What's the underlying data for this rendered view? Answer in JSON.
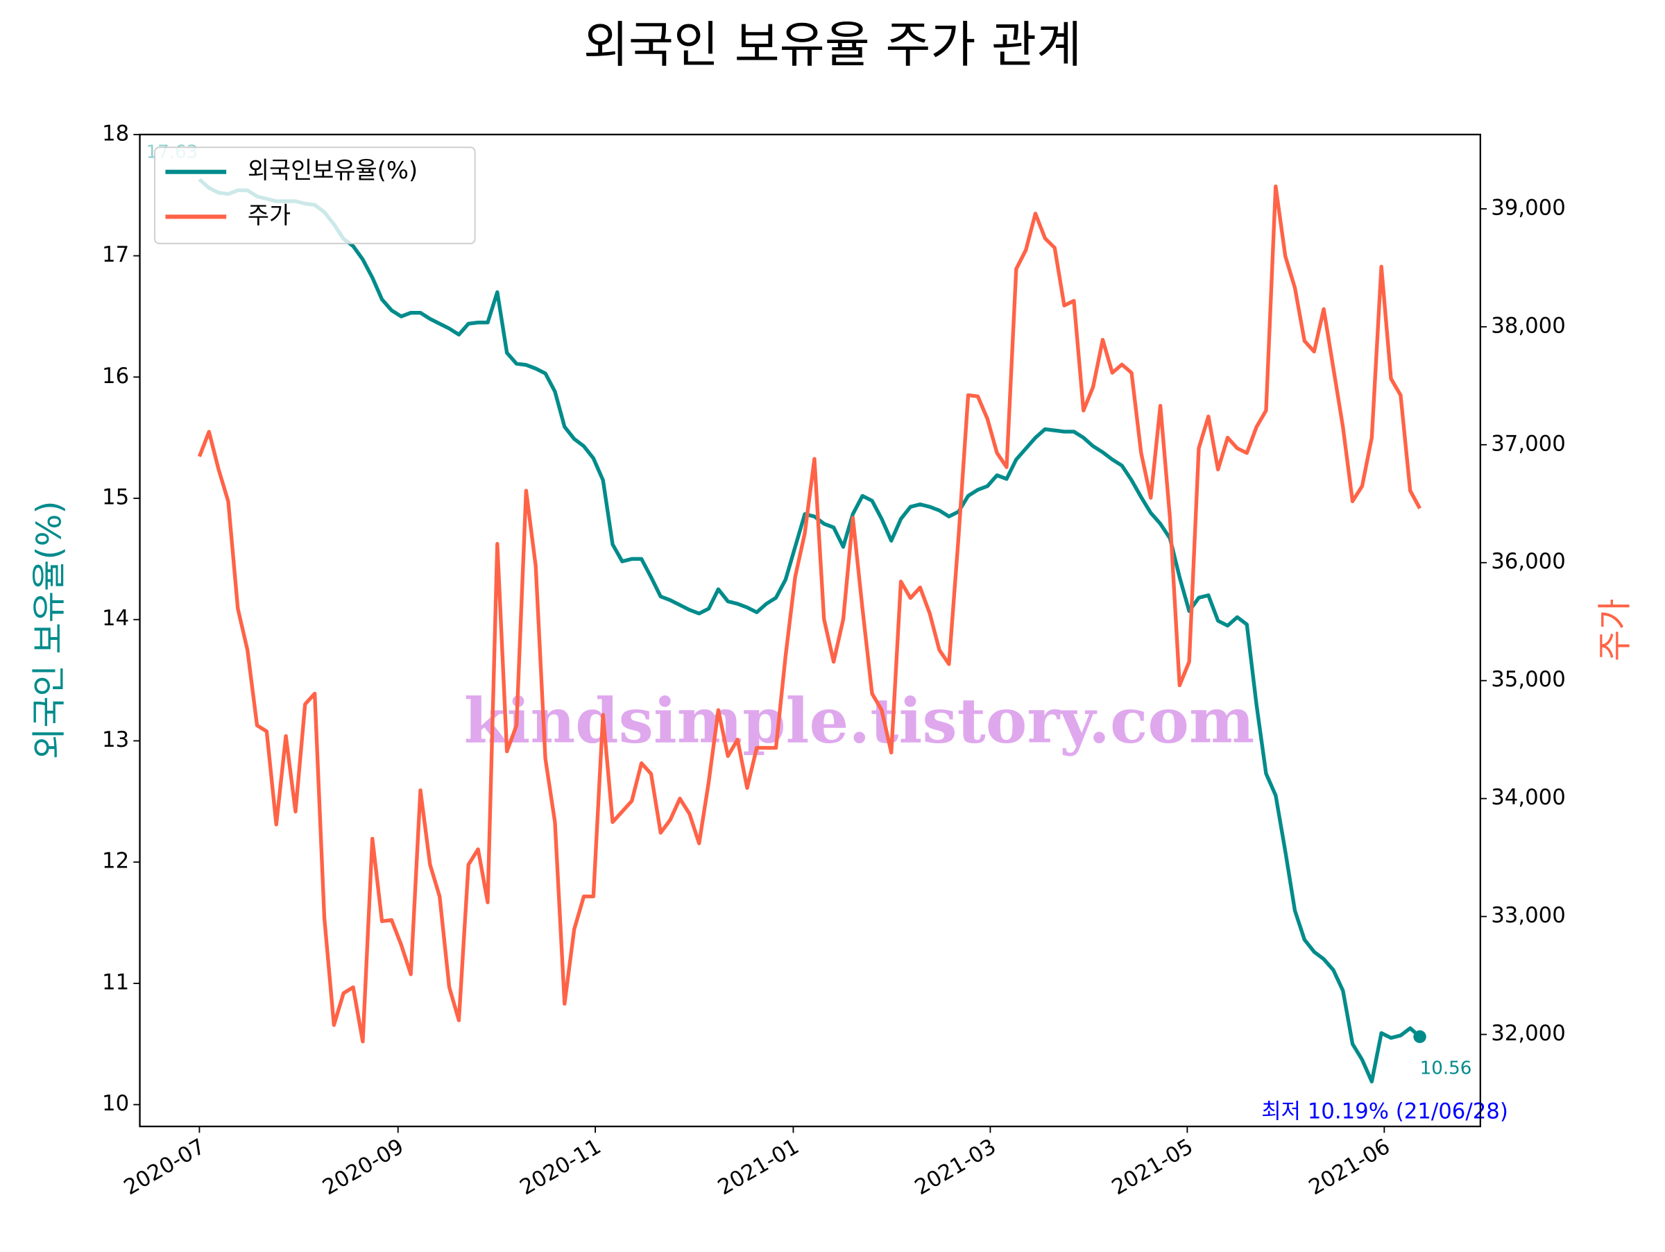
{
  "chart_data": {
    "type": "line",
    "title": "외국인 보유율 주가 관계",
    "ylabel": "외국인 보유율(%)",
    "y2label": "주가",
    "legend": "upper left",
    "grid": false,
    "xlim": [
      -6.2,
      133.3
    ],
    "xticks": [
      {
        "value": 0,
        "label": "2020-07"
      },
      {
        "value": 20.67,
        "label": "2020-09"
      },
      {
        "value": 41.2,
        "label": "2020-11"
      },
      {
        "value": 61.8,
        "label": "2021-01"
      },
      {
        "value": 82.3,
        "label": "2021-03"
      },
      {
        "value": 102.8,
        "label": "2021-05"
      },
      {
        "value": 123.3,
        "label": "2021-06"
      }
    ],
    "ylim": [
      9.82,
      18.0
    ],
    "yticks": [
      10,
      11,
      12,
      13,
      14,
      15,
      16,
      17,
      18
    ],
    "y2lim": [
      31220,
      39630
    ],
    "y2ticks": [
      {
        "value": 32000,
        "label": "32,000"
      },
      {
        "value": 33000,
        "label": "33,000"
      },
      {
        "value": 34000,
        "label": "34,000"
      },
      {
        "value": 35000,
        "label": "35,000"
      },
      {
        "value": 36000,
        "label": "36,000"
      },
      {
        "value": 37000,
        "label": "37,000"
      },
      {
        "value": 38000,
        "label": "38,000"
      },
      {
        "value": 39000,
        "label": "39,000"
      }
    ],
    "series": [
      {
        "name": "외국인보유율(%)",
        "color": "#008b8b",
        "axis": "y",
        "values": [
          17.63,
          17.56,
          17.52,
          17.51,
          17.54,
          17.54,
          17.49,
          17.47,
          17.45,
          17.45,
          17.45,
          17.43,
          17.42,
          17.36,
          17.26,
          17.14,
          17.08,
          16.97,
          16.82,
          16.64,
          16.55,
          16.5,
          16.53,
          16.53,
          16.48,
          16.44,
          16.4,
          16.35,
          16.44,
          16.45,
          16.45,
          16.7,
          16.2,
          16.11,
          16.1,
          16.07,
          16.03,
          15.88,
          15.59,
          15.49,
          15.43,
          15.33,
          15.15,
          14.62,
          14.48,
          14.5,
          14.5,
          14.35,
          14.19,
          14.16,
          14.12,
          14.08,
          14.05,
          14.09,
          14.25,
          14.15,
          14.13,
          14.1,
          14.06,
          14.13,
          14.18,
          14.33,
          14.6,
          14.87,
          14.85,
          14.79,
          14.76,
          14.6,
          14.87,
          15.02,
          14.98,
          14.83,
          14.65,
          14.83,
          14.93,
          14.95,
          14.93,
          14.9,
          14.85,
          14.89,
          15.02,
          15.07,
          15.1,
          15.19,
          15.16,
          15.32,
          15.41,
          15.5,
          15.57,
          15.56,
          15.55,
          15.55,
          15.5,
          15.43,
          15.38,
          15.32,
          15.27,
          15.15,
          15.01,
          14.88,
          14.79,
          14.67,
          14.35,
          14.07,
          14.18,
          14.2,
          13.99,
          13.95,
          14.02,
          13.96,
          13.3,
          12.73,
          12.55,
          12.09,
          11.6,
          11.36,
          11.26,
          11.2,
          11.11,
          10.94,
          10.5,
          10.37,
          10.19,
          10.59,
          10.55,
          10.57,
          10.63,
          10.56
        ]
      },
      {
        "name": "주가",
        "color": "#ff6347",
        "axis": "y2",
        "values": [
          36900,
          37110,
          36790,
          36520,
          35610,
          35260,
          34620,
          34570,
          33780,
          34530,
          33890,
          34800,
          34890,
          32990,
          32080,
          32350,
          32400,
          31940,
          33660,
          32960,
          32970,
          32760,
          32510,
          34070,
          33440,
          33170,
          32400,
          32120,
          33440,
          33570,
          33120,
          36160,
          34400,
          34620,
          36610,
          35970,
          34340,
          33800,
          32260,
          32890,
          33170,
          33170,
          34710,
          33800,
          33890,
          33980,
          34300,
          34210,
          33710,
          33820,
          34000,
          33870,
          33620,
          34140,
          34750,
          34360,
          34500,
          34090,
          34430,
          34430,
          34430,
          35210,
          35880,
          36250,
          36880,
          35520,
          35160,
          35520,
          36380,
          35610,
          34890,
          34750,
          34390,
          35840,
          35700,
          35790,
          35570,
          35260,
          35140,
          36220,
          37420,
          37410,
          37220,
          36930,
          36810,
          38490,
          38650,
          38960,
          38750,
          38670,
          38180,
          38220,
          37290,
          37490,
          37890,
          37610,
          37680,
          37610,
          36930,
          36550,
          37330,
          36380,
          34960,
          35160,
          36970,
          37240,
          36790,
          37060,
          36970,
          36930,
          37150,
          37290,
          39190,
          38600,
          38330,
          37880,
          37790,
          38150,
          37650,
          37150,
          36520,
          36650,
          37060,
          38510,
          37560,
          37420,
          36610,
          36460
        ]
      }
    ],
    "annotations": [
      "17.63",
      "10.56",
      "최저 10.19% (21/06/28)",
      "kindsimple.tistory.com"
    ]
  }
}
